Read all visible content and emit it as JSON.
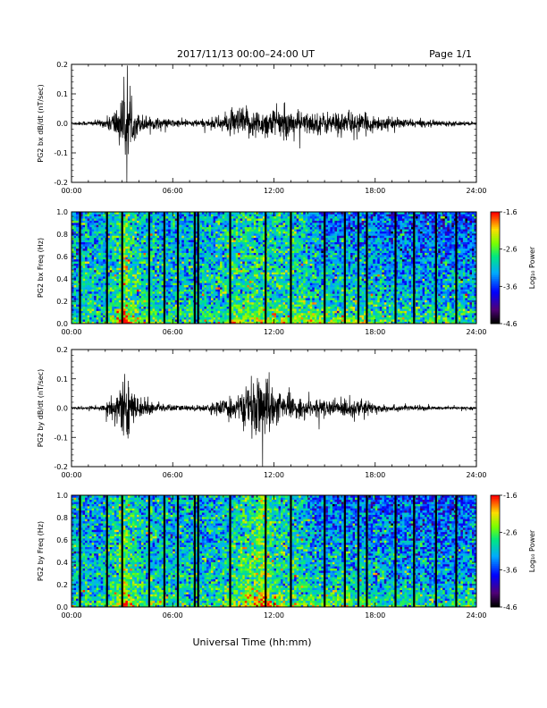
{
  "header": {
    "title": "2017/11/13  00:00–24:00 UT",
    "page": "Page 1/1"
  },
  "chart_data": [
    {
      "type": "line",
      "panel": "bx-dbdt",
      "ylabel": "PG2 bx dB/dt (nT/sec)",
      "xlim": [
        0,
        24
      ],
      "ylim": [
        -0.2,
        0.2
      ],
      "xticks": [
        "00:00",
        "06:00",
        "12:00",
        "18:00",
        "24:00"
      ],
      "yticks": [
        "-0.2",
        "-0.1",
        "0.0",
        "0.1",
        "0.2"
      ],
      "envelope": {
        "hours": [
          0,
          1,
          2,
          2.5,
          3,
          3.2,
          3.5,
          4,
          5,
          6,
          7,
          8,
          9,
          10,
          11,
          12,
          13,
          14,
          15,
          16,
          17,
          18,
          19,
          20,
          21,
          22,
          23,
          24
        ],
        "amplitude": [
          0.006,
          0.008,
          0.015,
          0.05,
          0.09,
          0.14,
          0.07,
          0.035,
          0.02,
          0.015,
          0.012,
          0.015,
          0.03,
          0.06,
          0.05,
          0.055,
          0.05,
          0.04,
          0.04,
          0.045,
          0.035,
          0.03,
          0.02,
          0.015,
          0.012,
          0.01,
          0.008,
          0.006
        ]
      }
    },
    {
      "type": "heatmap",
      "panel": "bx-spectrogram",
      "ylabel": "PG2 bx Freq (Hz)",
      "xlim": [
        0,
        24
      ],
      "ylim": [
        0,
        1
      ],
      "xticks": [
        "00:00",
        "06:00",
        "12:00",
        "18:00",
        "24:00"
      ],
      "yticks": [
        "0.0",
        "0.2",
        "0.4",
        "0.6",
        "0.8",
        "1.0"
      ],
      "colorbar": {
        "label": "Log₁₀ Power",
        "ticks": [
          "-1.6",
          "-2.6",
          "-3.6",
          "-4.6"
        ],
        "range": [
          -4.6,
          -1.6
        ]
      },
      "gap_hours": [
        0.5,
        2.1,
        3.0,
        4.6,
        5.5,
        6.3,
        7.3,
        7.5,
        9.4,
        11.5,
        13.0,
        15.0,
        16.2,
        17.0,
        17.5,
        19.2,
        20.3,
        21.6,
        22.8
      ]
    },
    {
      "type": "line",
      "panel": "by-dbdt",
      "ylabel": "PG2 by dB/dt (nT/sec)",
      "xlim": [
        0,
        24
      ],
      "ylim": [
        -0.2,
        0.2
      ],
      "xticks": [
        "00:00",
        "06:00",
        "12:00",
        "18:00",
        "24:00"
      ],
      "yticks": [
        "-0.2",
        "-0.1",
        "0.0",
        "0.1",
        "0.2"
      ],
      "envelope": {
        "hours": [
          0,
          1,
          2,
          2.5,
          3,
          3.2,
          3.5,
          4,
          5,
          6,
          7,
          8,
          9,
          10,
          11,
          11.3,
          12,
          13,
          14,
          15,
          16,
          17,
          18,
          19,
          20,
          21,
          22,
          23,
          24
        ],
        "amplitude": [
          0.004,
          0.006,
          0.015,
          0.05,
          0.08,
          0.13,
          0.07,
          0.035,
          0.02,
          0.012,
          0.01,
          0.012,
          0.03,
          0.05,
          0.1,
          0.15,
          0.06,
          0.04,
          0.03,
          0.03,
          0.035,
          0.03,
          0.02,
          0.012,
          0.01,
          0.008,
          0.006,
          0.005,
          0.004
        ]
      }
    },
    {
      "type": "heatmap",
      "panel": "by-spectrogram",
      "ylabel": "PG2 by Freq (Hz)",
      "xlim": [
        0,
        24
      ],
      "ylim": [
        0,
        1
      ],
      "xticks": [
        "00:00",
        "06:00",
        "12:00",
        "18:00",
        "24:00"
      ],
      "yticks": [
        "0.0",
        "0.2",
        "0.4",
        "0.6",
        "0.8",
        "1.0"
      ],
      "colorbar": {
        "label": "Log₁₀ Power",
        "ticks": [
          "-1.6",
          "-2.6",
          "-3.6",
          "-4.6"
        ],
        "range": [
          -4.6,
          -1.6
        ]
      },
      "gap_hours": [
        0.5,
        2.1,
        3.0,
        4.6,
        5.5,
        6.3,
        7.3,
        7.5,
        9.4,
        11.5,
        13.0,
        15.0,
        16.2,
        17.0,
        17.5,
        19.2,
        20.3,
        21.6,
        22.8
      ]
    }
  ],
  "footer": {
    "xlabel": "Universal Time (hh:mm)"
  }
}
